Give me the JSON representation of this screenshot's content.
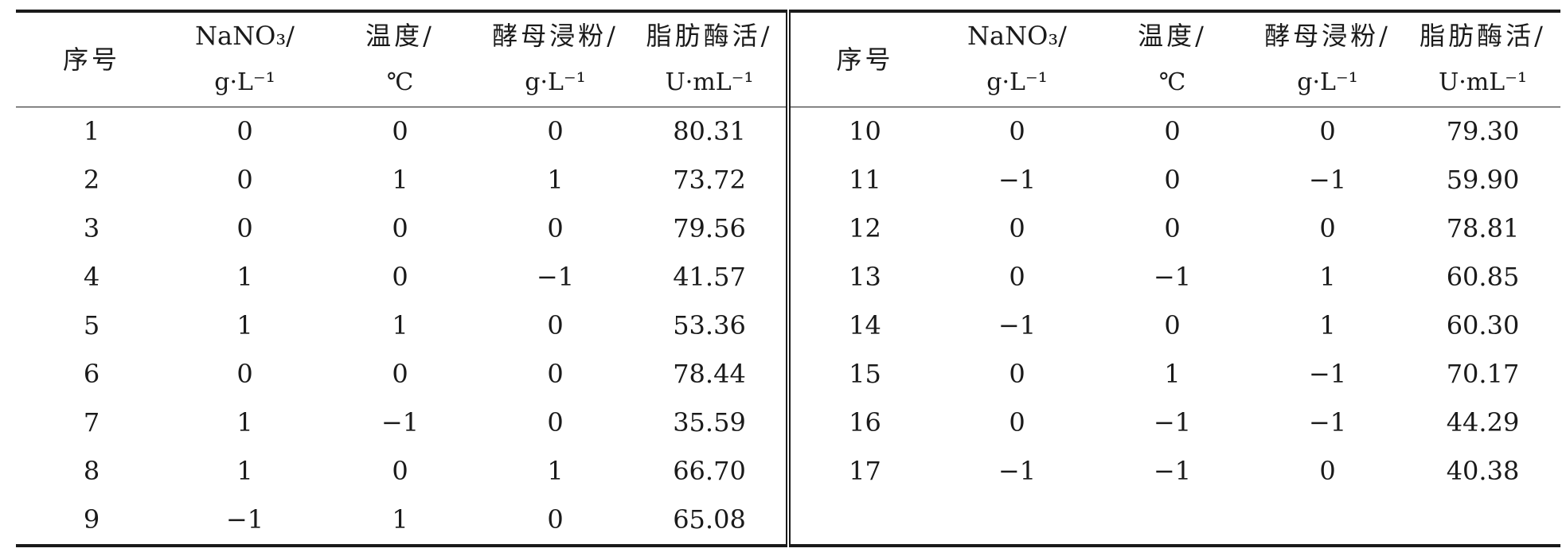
{
  "table": {
    "headers": {
      "index": "序号",
      "nano3_name": "NaNO₃/",
      "nano3_unit": "g·L⁻¹",
      "temp_name": "温度/",
      "temp_unit": "℃",
      "yeast_name": "酵母浸粉/",
      "yeast_unit": "g·L⁻¹",
      "activity_name": "脂肪酶活/",
      "activity_unit": "U·mL⁻¹"
    },
    "left_rows": [
      {
        "idx": "1",
        "nano3": "0",
        "temp": "0",
        "yeast": "0",
        "activity": "80.31"
      },
      {
        "idx": "2",
        "nano3": "0",
        "temp": "1",
        "yeast": "1",
        "activity": "73.72"
      },
      {
        "idx": "3",
        "nano3": "0",
        "temp": "0",
        "yeast": "0",
        "activity": "79.56"
      },
      {
        "idx": "4",
        "nano3": "1",
        "temp": "0",
        "yeast": "−1",
        "activity": "41.57"
      },
      {
        "idx": "5",
        "nano3": "1",
        "temp": "1",
        "yeast": "0",
        "activity": "53.36"
      },
      {
        "idx": "6",
        "nano3": "0",
        "temp": "0",
        "yeast": "0",
        "activity": "78.44"
      },
      {
        "idx": "7",
        "nano3": "1",
        "temp": "−1",
        "yeast": "0",
        "activity": "35.59"
      },
      {
        "idx": "8",
        "nano3": "1",
        "temp": "0",
        "yeast": "1",
        "activity": "66.70"
      },
      {
        "idx": "9",
        "nano3": "−1",
        "temp": "1",
        "yeast": "0",
        "activity": "65.08"
      }
    ],
    "right_rows": [
      {
        "idx": "10",
        "nano3": "0",
        "temp": "0",
        "yeast": "0",
        "activity": "79.30"
      },
      {
        "idx": "11",
        "nano3": "−1",
        "temp": "0",
        "yeast": "−1",
        "activity": "59.90"
      },
      {
        "idx": "12",
        "nano3": "0",
        "temp": "0",
        "yeast": "0",
        "activity": "78.81"
      },
      {
        "idx": "13",
        "nano3": "0",
        "temp": "−1",
        "yeast": "1",
        "activity": "60.85"
      },
      {
        "idx": "14",
        "nano3": "−1",
        "temp": "0",
        "yeast": "1",
        "activity": "60.30"
      },
      {
        "idx": "15",
        "nano3": "0",
        "temp": "1",
        "yeast": "−1",
        "activity": "70.17"
      },
      {
        "idx": "16",
        "nano3": "0",
        "temp": "−1",
        "yeast": "−1",
        "activity": "44.29"
      },
      {
        "idx": "17",
        "nano3": "−1",
        "temp": "−1",
        "yeast": "0",
        "activity": "40.38"
      },
      {
        "idx": "",
        "nano3": "",
        "temp": "",
        "yeast": "",
        "activity": ""
      }
    ]
  }
}
